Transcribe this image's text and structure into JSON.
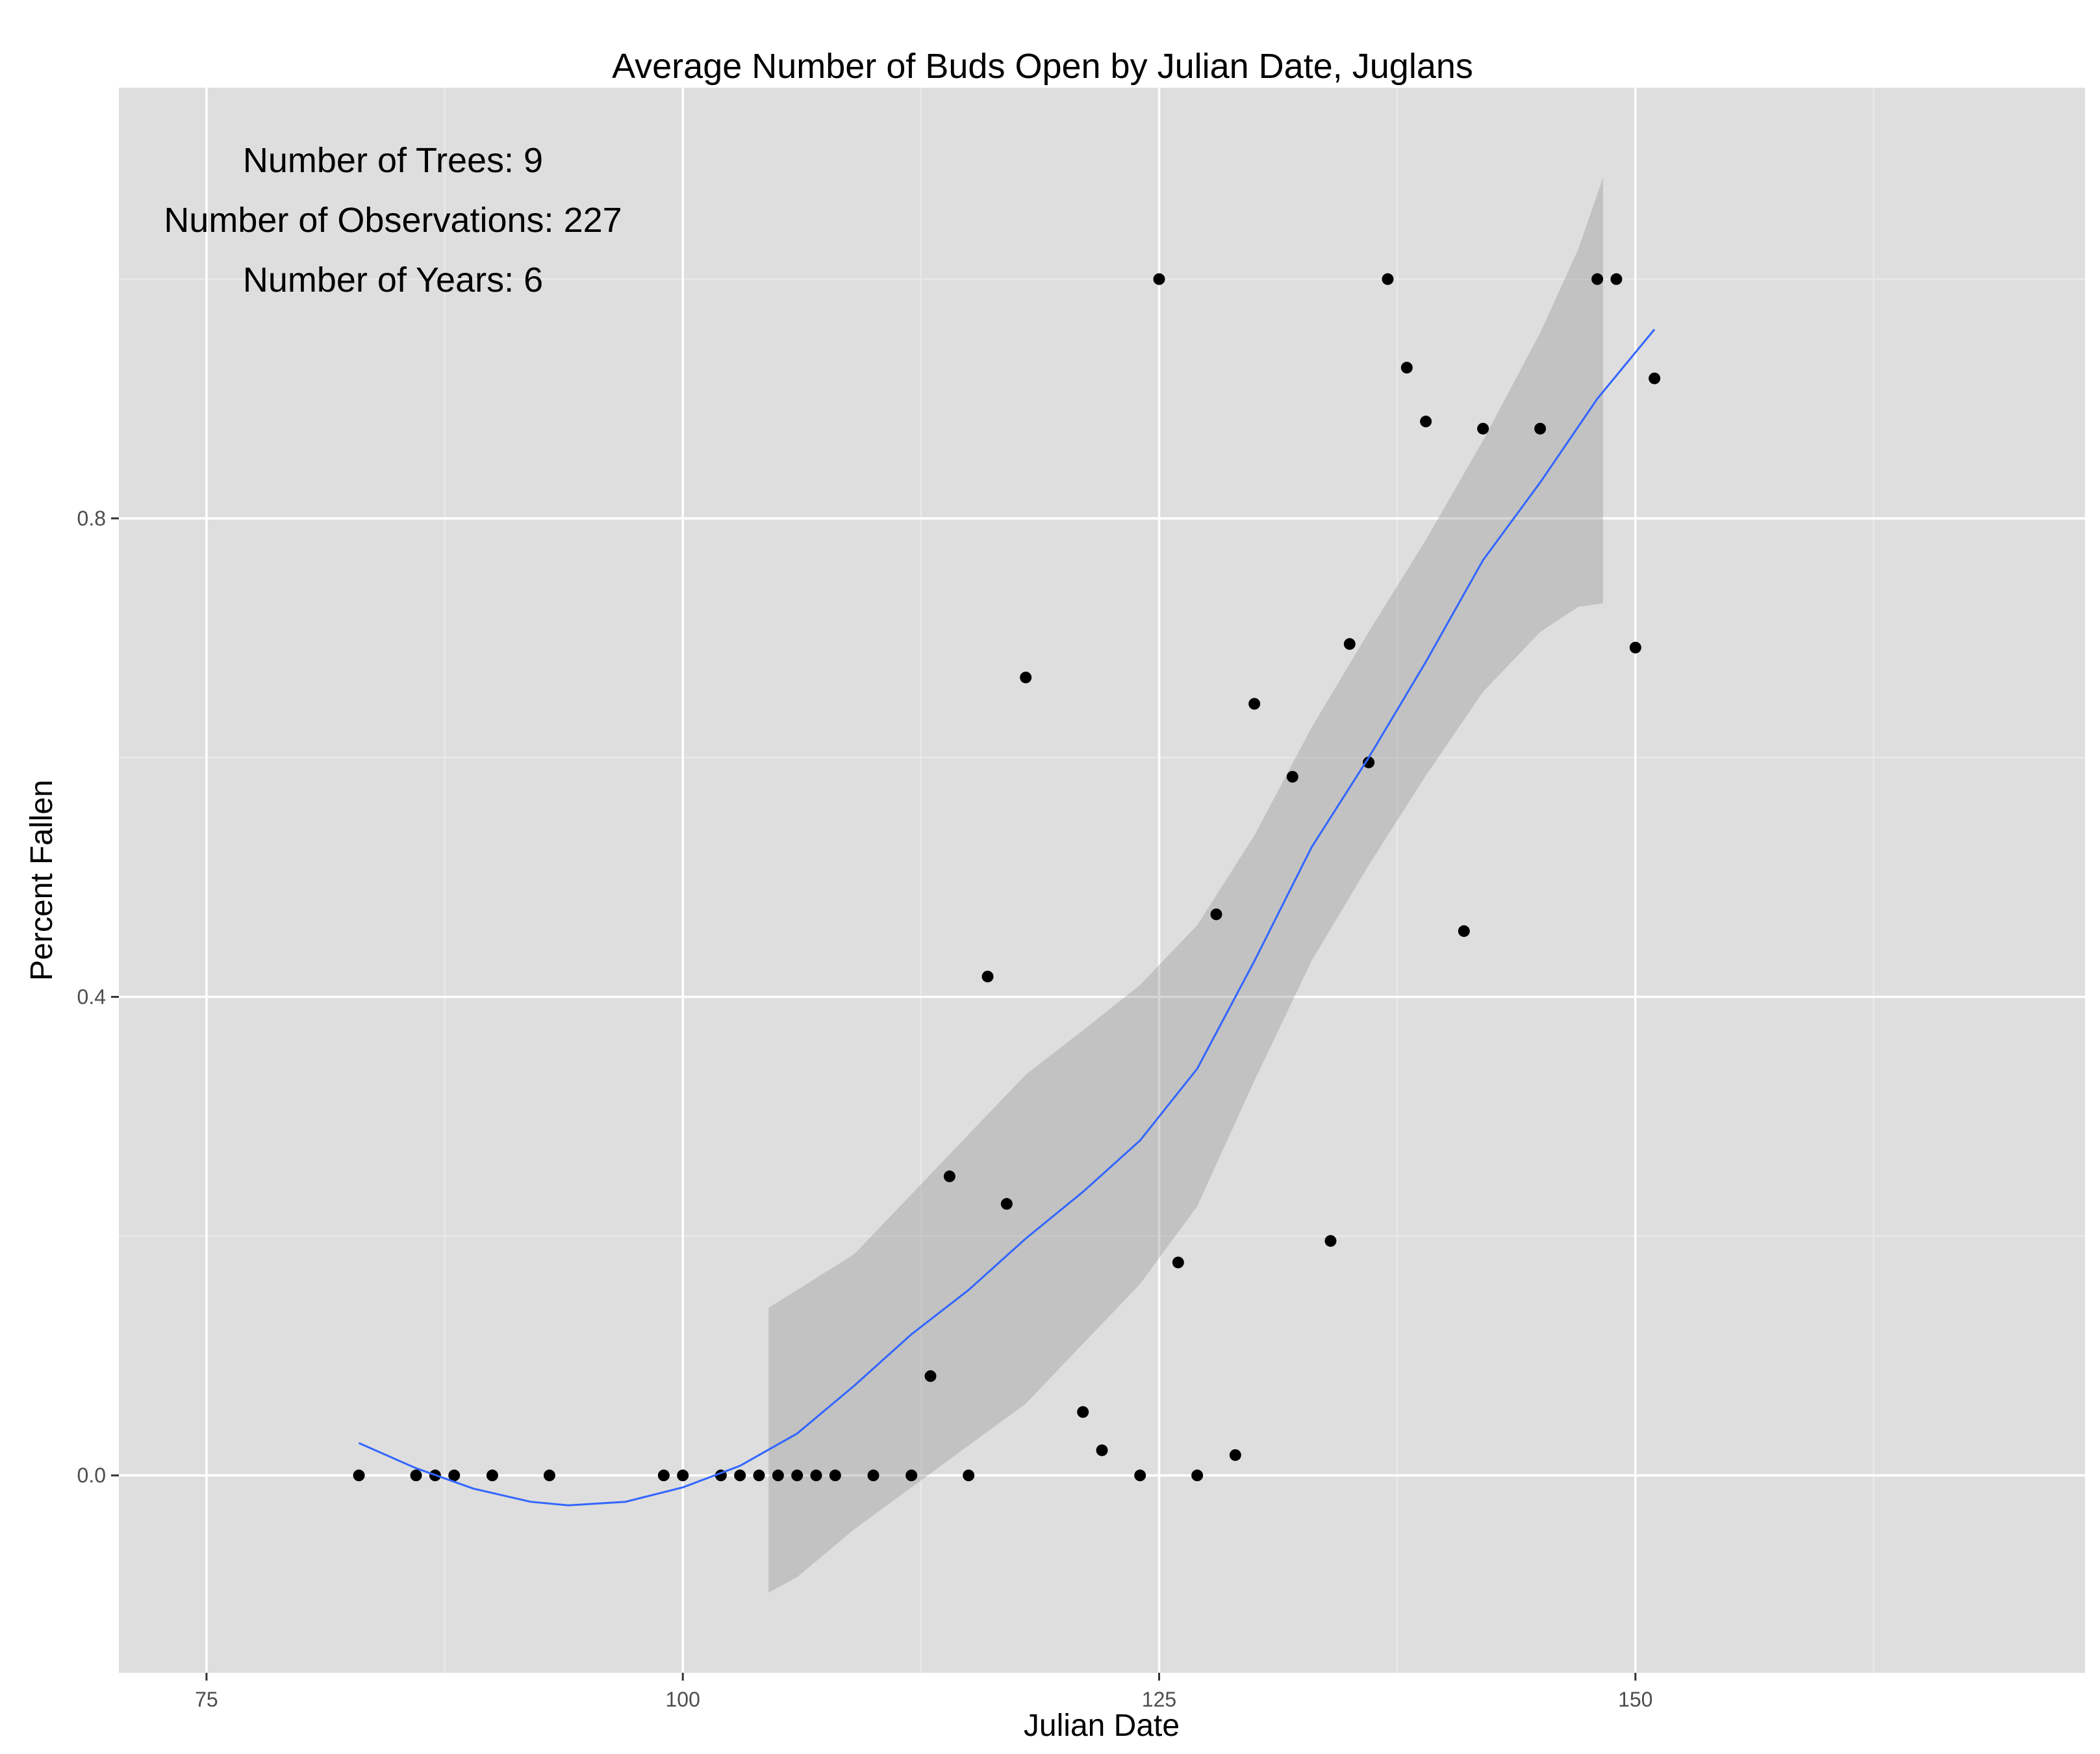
{
  "chart_data": {
    "type": "scatter",
    "title": "Average Number of Buds Open by Julian Date, Juglans",
    "xlabel": "Julian Date",
    "ylabel": "Percent Fallen",
    "xlim": [
      70.4,
      173.6
    ],
    "ylim": [
      -0.165,
      1.16
    ],
    "x_ticks": [
      75,
      100,
      125,
      150
    ],
    "x_tick_labels": [
      "75",
      "100",
      "125",
      "150"
    ],
    "y_ticks": [
      0.0,
      0.4,
      0.8
    ],
    "y_tick_labels": [
      "0.0",
      "0.4",
      "0.8"
    ],
    "grid": true,
    "annotations": [
      "Number of Trees: 9",
      "Number of Observations: 227",
      "Number of Years: 6"
    ],
    "points": [
      {
        "x": 83,
        "y": 0.0
      },
      {
        "x": 86,
        "y": 0.0
      },
      {
        "x": 87,
        "y": 0.0
      },
      {
        "x": 88,
        "y": 0.0
      },
      {
        "x": 90,
        "y": 0.0
      },
      {
        "x": 93,
        "y": 0.0
      },
      {
        "x": 99,
        "y": 0.0
      },
      {
        "x": 100,
        "y": 0.0
      },
      {
        "x": 102,
        "y": 0.0
      },
      {
        "x": 103,
        "y": 0.0
      },
      {
        "x": 104,
        "y": 0.0
      },
      {
        "x": 105,
        "y": 0.0
      },
      {
        "x": 106,
        "y": 0.0
      },
      {
        "x": 107,
        "y": 0.0
      },
      {
        "x": 108,
        "y": 0.0
      },
      {
        "x": 110,
        "y": 0.0
      },
      {
        "x": 112,
        "y": 0.0
      },
      {
        "x": 113,
        "y": 0.083
      },
      {
        "x": 114,
        "y": 0.25
      },
      {
        "x": 115,
        "y": 0.0
      },
      {
        "x": 116,
        "y": 0.417
      },
      {
        "x": 117,
        "y": 0.227
      },
      {
        "x": 118,
        "y": 0.667
      },
      {
        "x": 121,
        "y": 0.053
      },
      {
        "x": 122,
        "y": 0.021
      },
      {
        "x": 124,
        "y": 0.0
      },
      {
        "x": 125,
        "y": 1.0
      },
      {
        "x": 126,
        "y": 0.178
      },
      {
        "x": 127,
        "y": 0.0
      },
      {
        "x": 128,
        "y": 0.469
      },
      {
        "x": 129,
        "y": 0.017
      },
      {
        "x": 130,
        "y": 0.645
      },
      {
        "x": 132,
        "y": 0.584
      },
      {
        "x": 134,
        "y": 0.196
      },
      {
        "x": 135,
        "y": 0.695
      },
      {
        "x": 136,
        "y": 0.596
      },
      {
        "x": 137,
        "y": 1.0
      },
      {
        "x": 138,
        "y": 0.926
      },
      {
        "x": 139,
        "y": 0.881
      },
      {
        "x": 141,
        "y": 0.455
      },
      {
        "x": 142,
        "y": 0.875
      },
      {
        "x": 145,
        "y": 0.875
      },
      {
        "x": 148,
        "y": 1.0
      },
      {
        "x": 149,
        "y": 1.0
      },
      {
        "x": 150,
        "y": 0.692
      },
      {
        "x": 151,
        "y": 0.917
      }
    ],
    "smooth": {
      "method": "loess",
      "color": "#3366ff",
      "fit": [
        {
          "x": 83,
          "y": 0.027
        },
        {
          "x": 86,
          "y": 0.006
        },
        {
          "x": 89,
          "y": -0.011
        },
        {
          "x": 92,
          "y": -0.022
        },
        {
          "x": 94,
          "y": -0.025
        },
        {
          "x": 97,
          "y": -0.022
        },
        {
          "x": 100,
          "y": -0.01
        },
        {
          "x": 103,
          "y": 0.008
        },
        {
          "x": 106,
          "y": 0.035
        },
        {
          "x": 109,
          "y": 0.075
        },
        {
          "x": 112,
          "y": 0.118
        },
        {
          "x": 115,
          "y": 0.155
        },
        {
          "x": 118,
          "y": 0.198
        },
        {
          "x": 121,
          "y": 0.237
        },
        {
          "x": 124,
          "y": 0.28
        },
        {
          "x": 127,
          "y": 0.34
        },
        {
          "x": 130,
          "y": 0.43
        },
        {
          "x": 133,
          "y": 0.525
        },
        {
          "x": 136,
          "y": 0.6
        },
        {
          "x": 139,
          "y": 0.68
        },
        {
          "x": 142,
          "y": 0.765
        },
        {
          "x": 145,
          "y": 0.83
        },
        {
          "x": 148,
          "y": 0.9
        },
        {
          "x": 151,
          "y": 0.958
        }
      ],
      "band_color": "#999999",
      "band_opacity": 0.4,
      "band": [
        {
          "x": 104.5,
          "lo": -0.098,
          "hi": 0.14
        },
        {
          "x": 106,
          "lo": -0.085,
          "hi": 0.155
        },
        {
          "x": 109,
          "lo": -0.045,
          "hi": 0.185
        },
        {
          "x": 112,
          "lo": -0.01,
          "hi": 0.235
        },
        {
          "x": 115,
          "lo": 0.025,
          "hi": 0.285
        },
        {
          "x": 118,
          "lo": 0.06,
          "hi": 0.335
        },
        {
          "x": 121,
          "lo": 0.11,
          "hi": 0.372
        },
        {
          "x": 124,
          "lo": 0.16,
          "hi": 0.41
        },
        {
          "x": 127,
          "lo": 0.225,
          "hi": 0.46
        },
        {
          "x": 130,
          "lo": 0.33,
          "hi": 0.535
        },
        {
          "x": 133,
          "lo": 0.43,
          "hi": 0.625
        },
        {
          "x": 136,
          "lo": 0.51,
          "hi": 0.705
        },
        {
          "x": 139,
          "lo": 0.585,
          "hi": 0.782
        },
        {
          "x": 142,
          "lo": 0.655,
          "hi": 0.865
        },
        {
          "x": 145,
          "lo": 0.705,
          "hi": 0.955
        },
        {
          "x": 147,
          "lo": 0.726,
          "hi": 1.025
        },
        {
          "x": 148.3,
          "lo": 0.729,
          "hi": 1.085
        }
      ]
    },
    "colors": {
      "panel_background": "#dedede",
      "grid_major": "#ffffff",
      "grid_minor": "#ebebeb",
      "points": "#000000"
    }
  }
}
